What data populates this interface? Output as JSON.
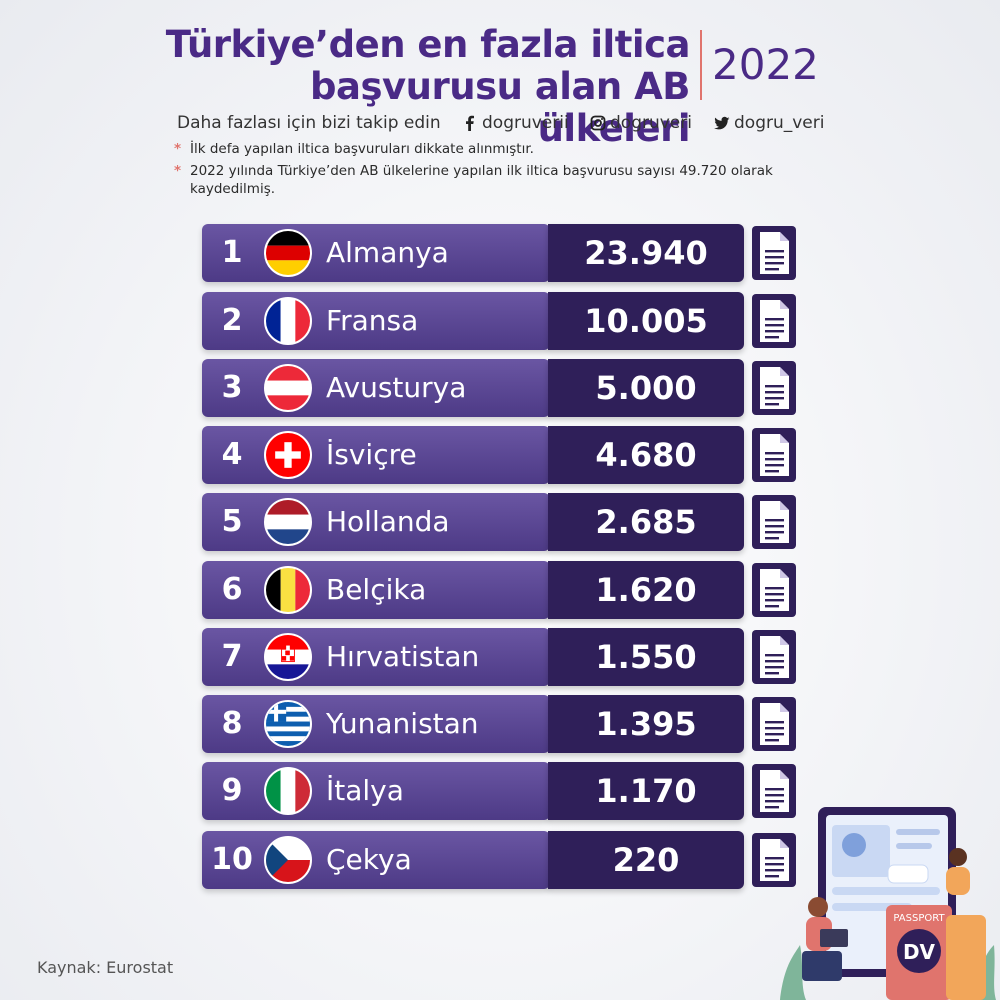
{
  "header": {
    "title_line1": "Türkiye’den en fazla iltica",
    "title_line2": "başvurusu alan AB ülkeleri",
    "year": "2022",
    "follow_text": "Daha fazlası için bizi takip edin",
    "facebook_handle": "dogruverii",
    "instagram_handle": "dogruveri",
    "twitter_handle": "dogru_veri"
  },
  "notes": [
    "İlk defa yapılan iltica başvuruları dikkate alınmıştır.",
    "2022 yılında Türkiye’den AB ülkelerine yapılan ilk iltica başvurusu sayısı 49.720 olarak kaydedilmiş."
  ],
  "source": "Kaynak: Eurostat",
  "illustration": {
    "passport_label": "PASSPORT",
    "logo_text": "DV"
  },
  "colors": {
    "title": "#4a2a86",
    "row_light": "#5b4796",
    "row_dark": "#2f1f59",
    "accent": "#e0746d"
  },
  "chart_data": {
    "type": "table",
    "title": "Türkiye’den en fazla iltica başvurusu alan AB ülkeleri",
    "rows": [
      {
        "rank": "1",
        "country": "Almanya",
        "value": "23.940",
        "flag": "germany-flag-icon"
      },
      {
        "rank": "2",
        "country": "Fransa",
        "value": "10.005",
        "flag": "france-flag-icon"
      },
      {
        "rank": "3",
        "country": "Avusturya",
        "value": "5.000",
        "flag": "austria-flag-icon"
      },
      {
        "rank": "4",
        "country": "İsviçre",
        "value": "4.680",
        "flag": "switzerland-flag-icon"
      },
      {
        "rank": "5",
        "country": "Hollanda",
        "value": "2.685",
        "flag": "netherlands-flag-icon"
      },
      {
        "rank": "6",
        "country": "Belçika",
        "value": "1.620",
        "flag": "belgium-flag-icon"
      },
      {
        "rank": "7",
        "country": "Hırvatistan",
        "value": "1.550",
        "flag": "croatia-flag-icon"
      },
      {
        "rank": "8",
        "country": "Yunanistan",
        "value": "1.395",
        "flag": "greece-flag-icon"
      },
      {
        "rank": "9",
        "country": "İtalya",
        "value": "1.170",
        "flag": "italy-flag-icon"
      },
      {
        "rank": "10",
        "country": "Çekya",
        "value": "220",
        "flag": "czechia-flag-icon"
      }
    ]
  }
}
